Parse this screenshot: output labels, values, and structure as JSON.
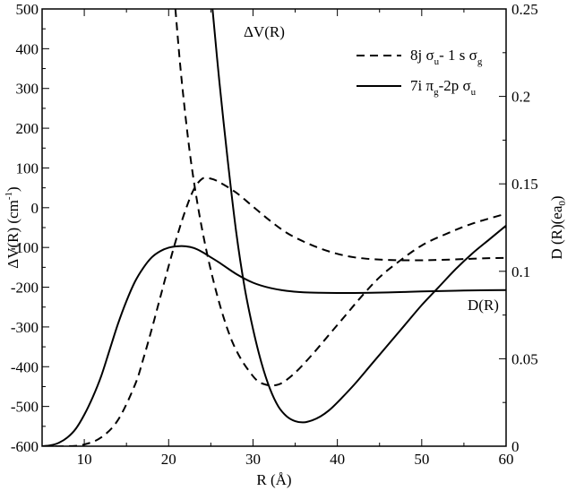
{
  "chart_data": {
    "type": "line",
    "xlabel": "R  (Å)",
    "ylabel_left": {
      "main": "ΔV(R)  (cm",
      "sup": "-1",
      "close": ")"
    },
    "ylabel_right": {
      "main": "D (R)(ea",
      "sub": "0",
      "close": ")"
    },
    "xlim": [
      5,
      60
    ],
    "ylim_left": [
      -600,
      500
    ],
    "ylim_right": [
      0,
      0.25
    ],
    "x_ticks": [
      "10",
      "20",
      "30",
      "40",
      "50",
      "60"
    ],
    "y_left_ticks": [
      "-600",
      "-500",
      "-400",
      "-300",
      "-200",
      "-100",
      "0",
      "100",
      "200",
      "300",
      "400",
      "500"
    ],
    "y_right_ticks": [
      "0",
      "0.05",
      "0.1",
      "0.15",
      "0.2",
      "0.25"
    ],
    "annotations": {
      "dv": "ΔV(R)",
      "d": "D(R)"
    },
    "legend": {
      "position": "top-right",
      "entries": [
        {
          "style": "dashed",
          "parts": [
            "8j σ",
            "u",
            "- 1 s σ",
            "g"
          ]
        },
        {
          "style": "solid",
          "parts": [
            "7i  π",
            "g",
            "-2p σ",
            "u"
          ]
        }
      ]
    },
    "series": [
      {
        "key": "dv_dashed",
        "axis": "left",
        "style": "dashed",
        "x": [
          20.8,
          21.5,
          22.5,
          23.5,
          24.5,
          25.5,
          26.5,
          27.5,
          28.5,
          29.5,
          30.5,
          31.5,
          32.5,
          33.5,
          35,
          37,
          39,
          41,
          43,
          45,
          47,
          50,
          53,
          56,
          60
        ],
        "y": [
          500,
          330,
          140,
          0,
          -110,
          -200,
          -275,
          -335,
          -378,
          -410,
          -435,
          -445,
          -447,
          -440,
          -415,
          -370,
          -320,
          -270,
          -220,
          -175,
          -140,
          -95,
          -65,
          -40,
          -15
        ]
      },
      {
        "key": "d_dashed",
        "axis": "right",
        "style": "dashed",
        "x": [
          5,
          8,
          10,
          12,
          14,
          16,
          17,
          18,
          19,
          20,
          21,
          22,
          23,
          24,
          25,
          26,
          28,
          30,
          32,
          34,
          36,
          38,
          40,
          42,
          44,
          46,
          48,
          50,
          52,
          55,
          58,
          60
        ],
        "y": [
          0,
          0,
          0.001,
          0.005,
          0.015,
          0.035,
          0.05,
          0.067,
          0.085,
          0.103,
          0.12,
          0.135,
          0.147,
          0.153,
          0.153,
          0.151,
          0.145,
          0.137,
          0.129,
          0.122,
          0.117,
          0.113,
          0.11,
          0.108,
          0.107,
          0.1065,
          0.1063,
          0.1063,
          0.1065,
          0.107,
          0.1075,
          0.1077
        ]
      },
      {
        "key": "dv_solid",
        "axis": "left",
        "style": "solid",
        "x": [
          25.2,
          26,
          27,
          28,
          29,
          30,
          31,
          32,
          33,
          34,
          35,
          36,
          37,
          38,
          39,
          40,
          42,
          44,
          46,
          48,
          50,
          52,
          54,
          56,
          58,
          60
        ],
        "y": [
          500,
          320,
          120,
          -60,
          -200,
          -305,
          -390,
          -455,
          -500,
          -525,
          -537,
          -540,
          -535,
          -525,
          -510,
          -490,
          -445,
          -395,
          -345,
          -295,
          -245,
          -200,
          -155,
          -115,
          -80,
          -45
        ]
      },
      {
        "key": "d_solid",
        "axis": "right",
        "style": "solid",
        "x": [
          5,
          6,
          7,
          8,
          9,
          10,
          11,
          12,
          13,
          14,
          15,
          16,
          17,
          18,
          19,
          20,
          21,
          22,
          23,
          24,
          25,
          26,
          28,
          30,
          32,
          34,
          36,
          38,
          40,
          42,
          44,
          46,
          48,
          50,
          52,
          55,
          58,
          60
        ],
        "y": [
          0,
          0.0005,
          0.002,
          0.005,
          0.01,
          0.018,
          0.028,
          0.04,
          0.055,
          0.07,
          0.083,
          0.094,
          0.102,
          0.108,
          0.1115,
          0.1135,
          0.1143,
          0.1143,
          0.1133,
          0.111,
          0.108,
          0.105,
          0.0985,
          0.0935,
          0.0905,
          0.0888,
          0.088,
          0.0877,
          0.0876,
          0.0876,
          0.0877,
          0.0879,
          0.0882,
          0.0885,
          0.0887,
          0.089,
          0.0892,
          0.0893
        ]
      }
    ]
  }
}
